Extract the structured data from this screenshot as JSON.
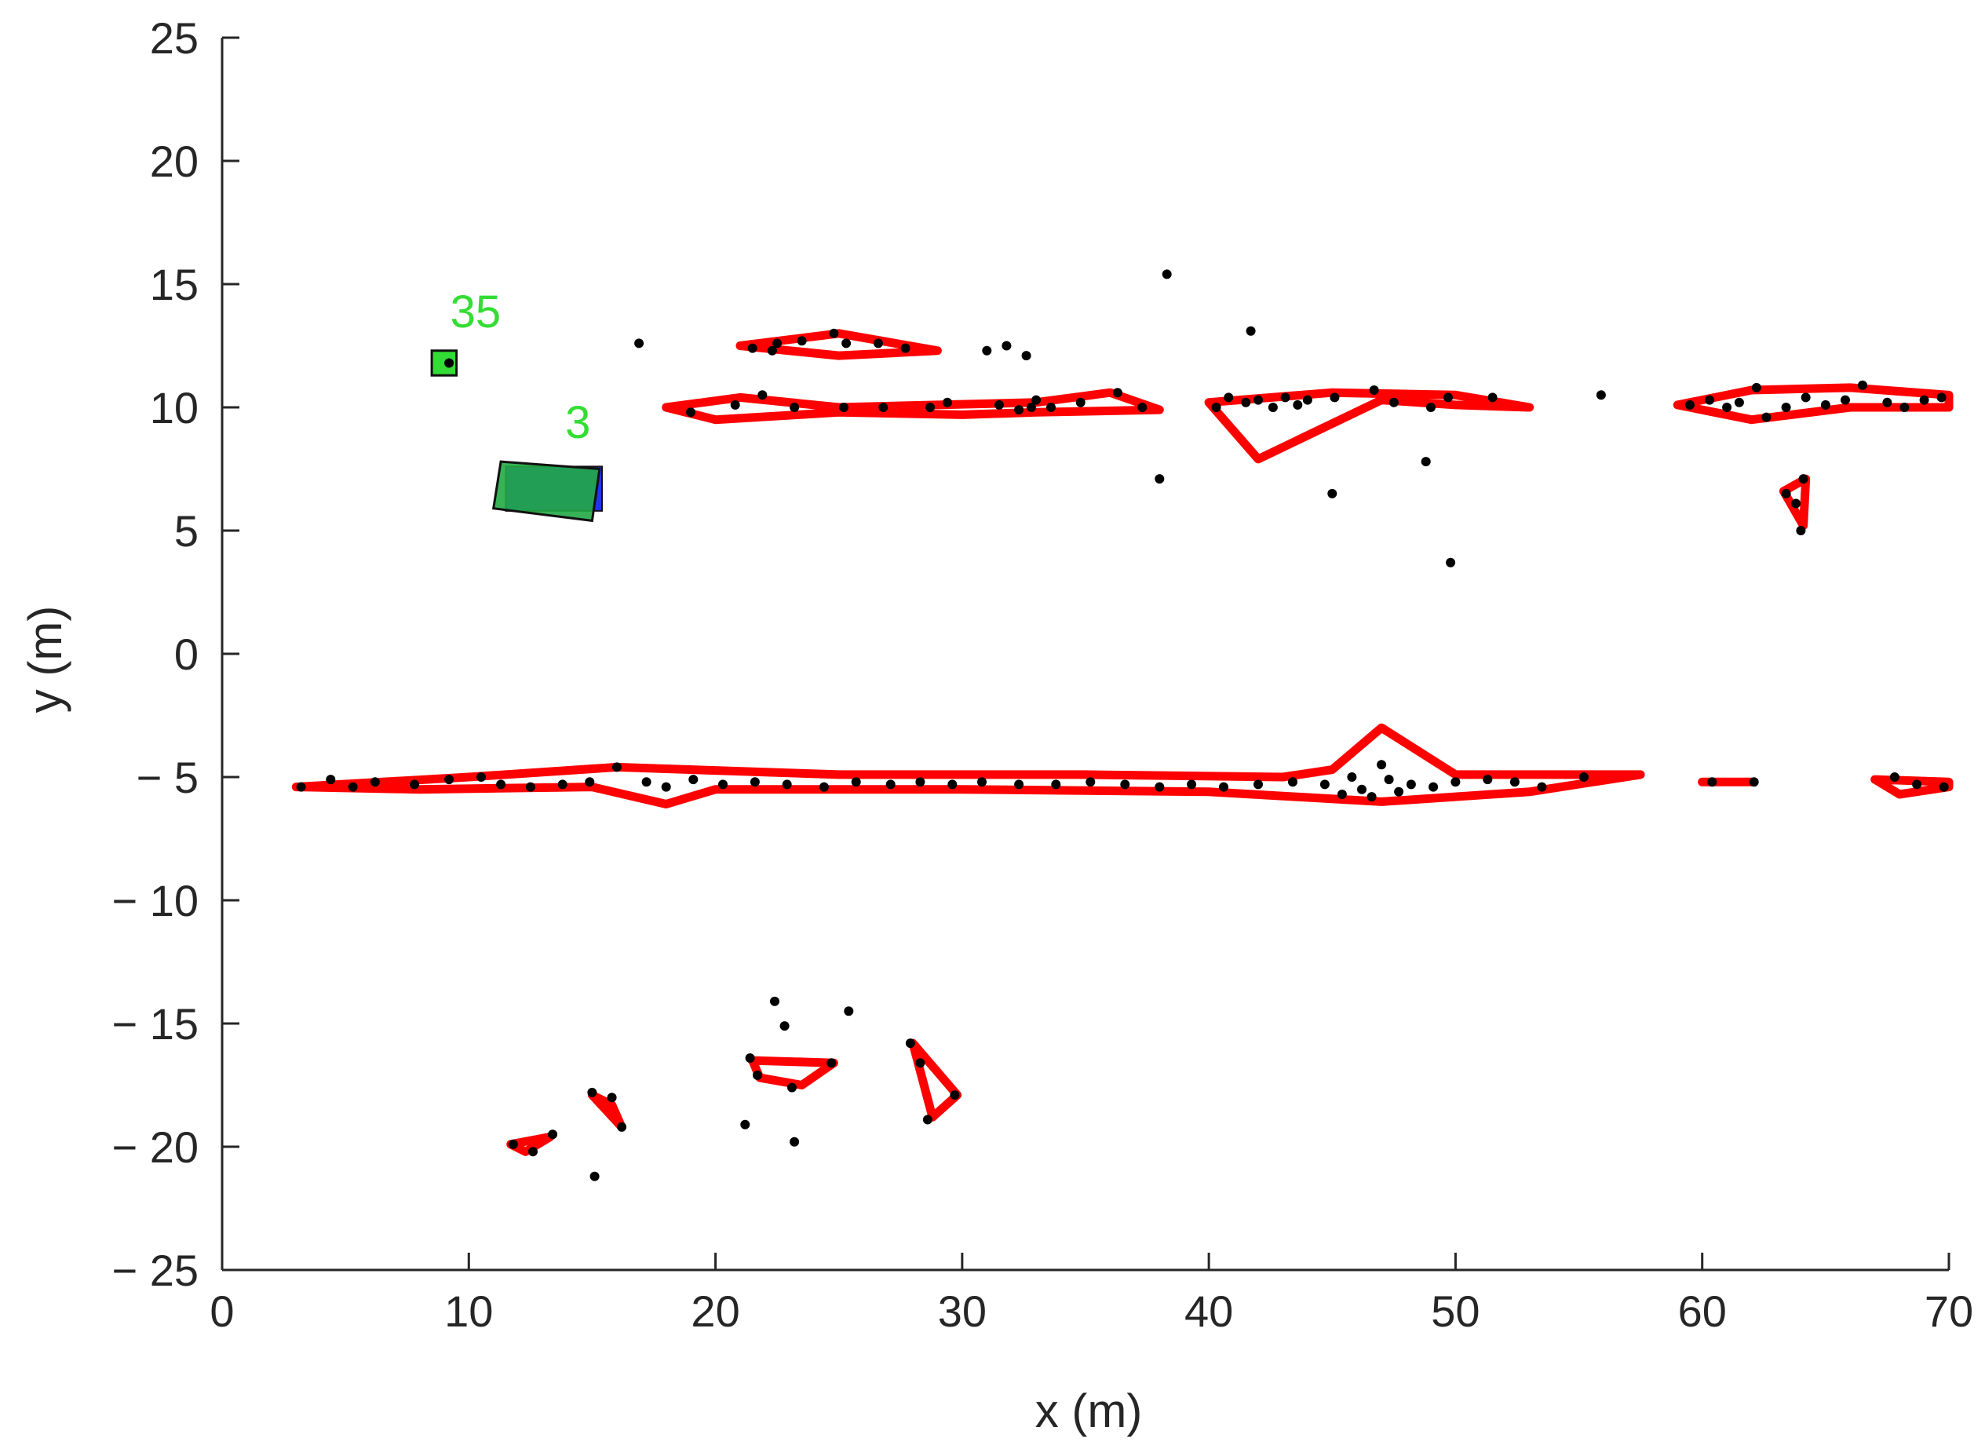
{
  "chart_data": {
    "type": "scatter",
    "title": "",
    "xlabel": "x (m)",
    "ylabel": "y (m)",
    "xlim": [
      0,
      70
    ],
    "ylim": [
      -25,
      25
    ],
    "xticks": [
      0,
      10,
      20,
      30,
      40,
      50,
      60,
      70
    ],
    "yticks": [
      -25,
      -20,
      -15,
      -10,
      -5,
      0,
      5,
      10,
      15,
      20,
      25
    ],
    "xtick_labels": [
      "0",
      "10",
      "20",
      "30",
      "40",
      "50",
      "60",
      "70"
    ],
    "ytick_labels": [
      "− 25",
      "− 20",
      "− 15",
      "− 10",
      "− 5",
      "0",
      "5",
      "10",
      "15",
      "20",
      "25"
    ],
    "grid": false,
    "legend": "none",
    "colors": {
      "points": "#000000",
      "contours": "#ff0000",
      "track": "#33dd33",
      "track_fill": "#22aa44",
      "box_blue": "#2233ee",
      "axis": "#262626"
    },
    "tracked_objects": [
      {
        "id": "35",
        "corners": [
          [
            8.5,
            11.3
          ],
          [
            9.5,
            11.3
          ],
          [
            9.5,
            12.3
          ],
          [
            8.5,
            12.3
          ]
        ]
      },
      {
        "id": "3",
        "corners": [
          [
            11.3,
            7.8
          ],
          [
            15.3,
            7.5
          ],
          [
            15.0,
            5.4
          ],
          [
            11.0,
            5.9
          ]
        ]
      }
    ],
    "blue_box": [
      [
        11.5,
        5.8
      ],
      [
        15.4,
        5.8
      ],
      [
        15.4,
        7.6
      ],
      [
        11.5,
        7.6
      ]
    ],
    "contours": [
      [
        [
          3,
          -5.4
        ],
        [
          10,
          -5.0
        ],
        [
          16,
          -4.6
        ],
        [
          25,
          -4.9
        ],
        [
          35,
          -4.9
        ],
        [
          43,
          -5.0
        ],
        [
          45,
          -4.7
        ],
        [
          47,
          -3.0
        ],
        [
          50,
          -4.9
        ],
        [
          57.5,
          -4.9
        ],
        [
          53,
          -5.6
        ],
        [
          47,
          -6.0
        ],
        [
          40,
          -5.6
        ],
        [
          30,
          -5.5
        ],
        [
          20,
          -5.5
        ],
        [
          18,
          -6.1
        ],
        [
          15,
          -5.4
        ],
        [
          8,
          -5.5
        ],
        [
          3,
          -5.4
        ]
      ],
      [
        [
          60,
          -5.2
        ],
        [
          62,
          -5.2
        ]
      ],
      [
        [
          67,
          -5.1
        ],
        [
          70,
          -5.2
        ],
        [
          70,
          -5.4
        ],
        [
          68,
          -5.7
        ],
        [
          67,
          -5.1
        ]
      ],
      [
        [
          18,
          10
        ],
        [
          21,
          10.4
        ],
        [
          25,
          10
        ],
        [
          29,
          10.1
        ],
        [
          33,
          10.2
        ],
        [
          36,
          10.6
        ],
        [
          38,
          9.9
        ],
        [
          33,
          9.8
        ],
        [
          30,
          9.7
        ],
        [
          25,
          9.8
        ],
        [
          20,
          9.5
        ],
        [
          18,
          10
        ]
      ],
      [
        [
          21,
          12.5
        ],
        [
          25,
          13
        ],
        [
          29,
          12.3
        ],
        [
          25,
          12.1
        ],
        [
          21,
          12.5
        ]
      ],
      [
        [
          40,
          10.2
        ],
        [
          45,
          10.6
        ],
        [
          50,
          10.5
        ],
        [
          53,
          10
        ],
        [
          50,
          10.1
        ],
        [
          47,
          10.3
        ],
        [
          42,
          7.9
        ],
        [
          40,
          10.2
        ]
      ],
      [
        [
          59,
          10.1
        ],
        [
          62,
          10.7
        ],
        [
          66,
          10.8
        ],
        [
          70,
          10.5
        ],
        [
          70,
          10
        ],
        [
          66,
          10
        ],
        [
          62,
          9.5
        ],
        [
          59,
          10.1
        ]
      ],
      [
        [
          63.3,
          6.6
        ],
        [
          64.2,
          7.1
        ],
        [
          64.1,
          5.2
        ],
        [
          63.3,
          6.6
        ]
      ],
      [
        [
          21.5,
          -16.5
        ],
        [
          24.8,
          -16.6
        ],
        [
          23.5,
          -17.5
        ],
        [
          21.8,
          -17.2
        ],
        [
          21.5,
          -16.5
        ]
      ],
      [
        [
          28,
          -15.8
        ],
        [
          29.8,
          -17.9
        ],
        [
          28.8,
          -18.8
        ],
        [
          28,
          -15.8
        ]
      ],
      [
        [
          15,
          -17.9
        ],
        [
          15.8,
          -18.3
        ],
        [
          16.2,
          -19.2
        ],
        [
          15,
          -17.9
        ]
      ],
      [
        [
          11.7,
          -19.9
        ],
        [
          13.3,
          -19.6
        ],
        [
          12.3,
          -20.2
        ],
        [
          11.7,
          -19.9
        ]
      ]
    ],
    "points": [
      [
        9.2,
        11.8
      ],
      [
        16.9,
        12.6
      ],
      [
        31.0,
        12.3
      ],
      [
        31.8,
        12.5
      ],
      [
        32.6,
        12.1
      ],
      [
        38.3,
        15.4
      ],
      [
        41.7,
        13.1
      ],
      [
        38.0,
        7.1
      ],
      [
        45.0,
        6.5
      ],
      [
        48.8,
        7.8
      ],
      [
        49.8,
        3.7
      ],
      [
        55.9,
        10.5
      ],
      [
        21.5,
        12.4
      ],
      [
        22.3,
        12.3
      ],
      [
        22.5,
        12.6
      ],
      [
        23.5,
        12.7
      ],
      [
        24.8,
        13.0
      ],
      [
        25.3,
        12.6
      ],
      [
        26.6,
        12.6
      ],
      [
        27.7,
        12.4
      ],
      [
        19.0,
        9.8
      ],
      [
        20.8,
        10.1
      ],
      [
        21.9,
        10.5
      ],
      [
        23.2,
        10.0
      ],
      [
        25.2,
        10.0
      ],
      [
        26.8,
        10.0
      ],
      [
        28.7,
        10.0
      ],
      [
        29.4,
        10.2
      ],
      [
        31.5,
        10.1
      ],
      [
        32.3,
        9.9
      ],
      [
        32.8,
        10.0
      ],
      [
        33.0,
        10.3
      ],
      [
        33.6,
        10.0
      ],
      [
        34.8,
        10.2
      ],
      [
        36.3,
        10.6
      ],
      [
        37.3,
        10.0
      ],
      [
        40.3,
        10.0
      ],
      [
        40.8,
        10.4
      ],
      [
        41.5,
        10.2
      ],
      [
        42.0,
        10.3
      ],
      [
        42.6,
        10.0
      ],
      [
        43.1,
        10.4
      ],
      [
        43.6,
        10.1
      ],
      [
        44.0,
        10.3
      ],
      [
        45.1,
        10.4
      ],
      [
        46.7,
        10.7
      ],
      [
        47.5,
        10.2
      ],
      [
        49.0,
        10.0
      ],
      [
        49.7,
        10.4
      ],
      [
        51.5,
        10.4
      ],
      [
        59.5,
        10.1
      ],
      [
        60.3,
        10.3
      ],
      [
        61.0,
        10.0
      ],
      [
        61.5,
        10.2
      ],
      [
        62.2,
        10.8
      ],
      [
        62.6,
        9.6
      ],
      [
        63.4,
        10.0
      ],
      [
        64.2,
        10.4
      ],
      [
        65.0,
        10.1
      ],
      [
        65.8,
        10.3
      ],
      [
        66.5,
        10.9
      ],
      [
        67.5,
        10.2
      ],
      [
        68.2,
        10.0
      ],
      [
        69.0,
        10.3
      ],
      [
        69.7,
        10.4
      ],
      [
        63.4,
        6.5
      ],
      [
        63.8,
        6.1
      ],
      [
        64.0,
        5.0
      ],
      [
        64.1,
        7.1
      ],
      [
        3.2,
        -5.4
      ],
      [
        4.4,
        -5.1
      ],
      [
        5.3,
        -5.4
      ],
      [
        6.2,
        -5.2
      ],
      [
        7.8,
        -5.3
      ],
      [
        9.2,
        -5.1
      ],
      [
        10.5,
        -5.0
      ],
      [
        11.3,
        -5.3
      ],
      [
        12.5,
        -5.4
      ],
      [
        13.8,
        -5.3
      ],
      [
        14.9,
        -5.2
      ],
      [
        16.0,
        -4.6
      ],
      [
        17.2,
        -5.2
      ],
      [
        18.0,
        -5.4
      ],
      [
        19.1,
        -5.1
      ],
      [
        20.3,
        -5.3
      ],
      [
        21.6,
        -5.2
      ],
      [
        22.9,
        -5.3
      ],
      [
        24.4,
        -5.4
      ],
      [
        25.7,
        -5.2
      ],
      [
        27.1,
        -5.3
      ],
      [
        28.3,
        -5.2
      ],
      [
        29.6,
        -5.3
      ],
      [
        30.8,
        -5.2
      ],
      [
        32.3,
        -5.3
      ],
      [
        33.8,
        -5.3
      ],
      [
        35.2,
        -5.2
      ],
      [
        36.6,
        -5.3
      ],
      [
        38.0,
        -5.4
      ],
      [
        39.3,
        -5.3
      ],
      [
        40.6,
        -5.4
      ],
      [
        42.0,
        -5.3
      ],
      [
        43.4,
        -5.2
      ],
      [
        44.7,
        -5.3
      ],
      [
        45.4,
        -5.7
      ],
      [
        45.8,
        -5.0
      ],
      [
        46.2,
        -5.5
      ],
      [
        46.6,
        -5.8
      ],
      [
        47.0,
        -4.5
      ],
      [
        47.3,
        -5.1
      ],
      [
        47.7,
        -5.6
      ],
      [
        48.2,
        -5.3
      ],
      [
        49.1,
        -5.4
      ],
      [
        50.0,
        -5.2
      ],
      [
        51.3,
        -5.1
      ],
      [
        52.4,
        -5.2
      ],
      [
        53.5,
        -5.4
      ],
      [
        55.2,
        -5.0
      ],
      [
        60.4,
        -5.2
      ],
      [
        62.1,
        -5.2
      ],
      [
        67.8,
        -5.0
      ],
      [
        68.7,
        -5.3
      ],
      [
        69.8,
        -5.4
      ],
      [
        22.4,
        -14.1
      ],
      [
        22.8,
        -15.1
      ],
      [
        25.4,
        -14.5
      ],
      [
        21.4,
        -16.4
      ],
      [
        21.7,
        -17.1
      ],
      [
        23.1,
        -17.6
      ],
      [
        24.7,
        -16.6
      ],
      [
        21.2,
        -19.1
      ],
      [
        23.2,
        -19.8
      ],
      [
        27.9,
        -15.8
      ],
      [
        28.6,
        -18.9
      ],
      [
        29.7,
        -17.9
      ],
      [
        28.3,
        -16.6
      ],
      [
        15.0,
        -17.8
      ],
      [
        15.8,
        -18.0
      ],
      [
        16.2,
        -19.2
      ],
      [
        11.8,
        -19.9
      ],
      [
        12.6,
        -20.2
      ],
      [
        13.4,
        -19.5
      ],
      [
        15.1,
        -21.2
      ]
    ]
  }
}
